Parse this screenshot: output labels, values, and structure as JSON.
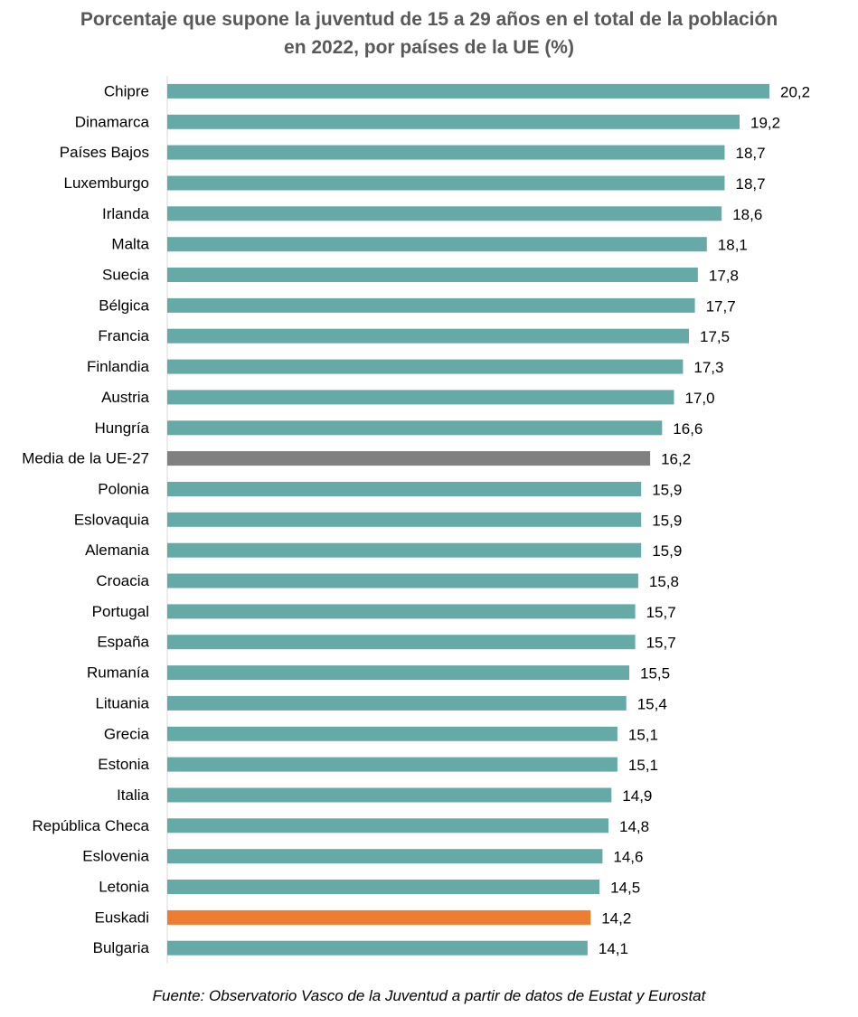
{
  "title_lines": [
    "Porcentaje que supone la juventud de 15 a 29 años en el total de la población",
    "en 2022, por países de la UE (%)"
  ],
  "source": "Fuente: Observatorio Vasco de la Juventud a partir de datos de Eustat y Eurostat",
  "colors": {
    "default": "#66AAA7",
    "average": "#808080",
    "highlight": "#ED7D31",
    "axis": "#D9D9D9"
  },
  "chart_data": {
    "type": "bar",
    "orientation": "horizontal",
    "title": "Porcentaje que supone la juventud de 15 a 29 años en el total de la población en 2022, por países de la UE (%)",
    "categories": [
      "Chipre",
      "Dinamarca",
      "Países Bajos",
      "Luxemburgo",
      "Irlanda",
      "Malta",
      "Suecia",
      "Bélgica",
      "Francia",
      "Finlandia",
      "Austria",
      "Hungría",
      "Media de la UE-27",
      "Polonia",
      "Eslovaquia",
      "Alemania",
      "Croacia",
      "Portugal",
      "España",
      "Rumanía",
      "Lituania",
      "Grecia",
      "Estonia",
      "Italia",
      "República Checa",
      "Eslovenia",
      "Letonia",
      "Euskadi",
      "Bulgaria"
    ],
    "values": [
      20.2,
      19.2,
      18.7,
      18.7,
      18.6,
      18.1,
      17.8,
      17.7,
      17.5,
      17.3,
      17.0,
      16.6,
      16.2,
      15.9,
      15.9,
      15.9,
      15.8,
      15.7,
      15.7,
      15.5,
      15.4,
      15.1,
      15.1,
      14.9,
      14.8,
      14.6,
      14.5,
      14.2,
      14.1
    ],
    "value_labels": [
      "20,2",
      "19,2",
      "18,7",
      "18,7",
      "18,6",
      "18,1",
      "17,8",
      "17,7",
      "17,5",
      "17,3",
      "17,0",
      "16,6",
      "16,2",
      "15,9",
      "15,9",
      "15,9",
      "15,8",
      "15,7",
      "15,7",
      "15,5",
      "15,4",
      "15,1",
      "15,1",
      "14,9",
      "14,8",
      "14,6",
      "14,5",
      "14,2",
      "14,1"
    ],
    "bar_colors": [
      "default",
      "default",
      "default",
      "default",
      "default",
      "default",
      "default",
      "default",
      "default",
      "default",
      "default",
      "default",
      "average",
      "default",
      "default",
      "default",
      "default",
      "default",
      "default",
      "default",
      "default",
      "default",
      "default",
      "default",
      "default",
      "default",
      "default",
      "highlight",
      "default"
    ],
    "xlim": [
      0,
      20.2
    ],
    "grid": false,
    "legend": "none"
  }
}
